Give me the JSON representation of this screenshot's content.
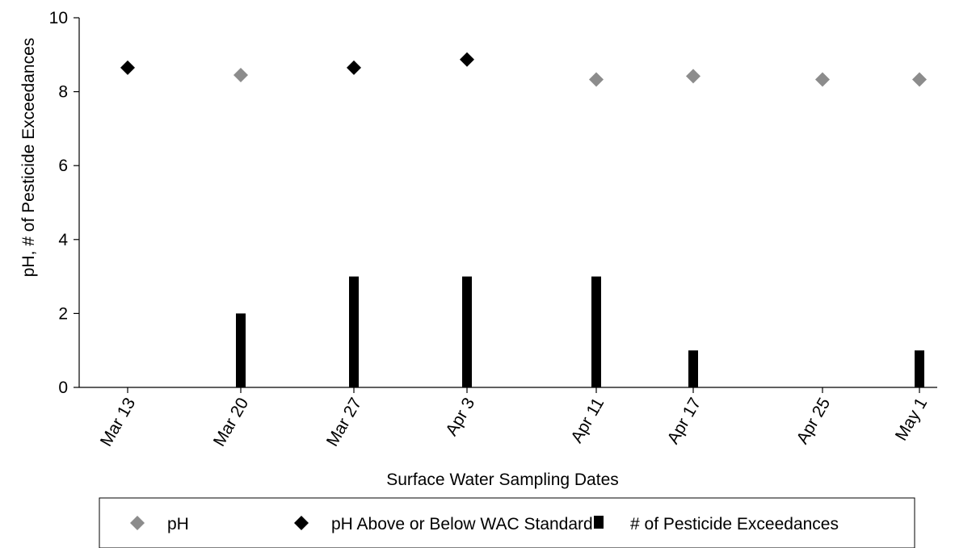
{
  "chart_data": {
    "type": "scatter",
    "xlabel": "Surface Water Sampling Dates",
    "ylabel": "pH, # of Pesticide Exceedances",
    "ylim": [
      0,
      10
    ],
    "yticks": [
      "0",
      "2",
      "4",
      "6",
      "8",
      "10"
    ],
    "x": [
      "2013-03-13",
      "2013-03-20",
      "2013-03-27",
      "2013-04-03",
      "2013-04-11",
      "2013-04-17",
      "2013-04-25",
      "2013-05-01"
    ],
    "x_tick_labels": [
      "Mar 13",
      "Mar 20",
      "Mar 27",
      "Apr 3",
      "Apr 11",
      "Apr 17",
      "Apr 25",
      "May 1"
    ],
    "legend_position": "bottom",
    "grid": false,
    "series": [
      {
        "name": "pH",
        "marker": "diamond",
        "color": "#8c8c8c",
        "values": [
          null,
          8.45,
          null,
          null,
          8.33,
          8.42,
          8.33,
          8.33
        ]
      },
      {
        "name": "pH Above or Below WAC Standard",
        "marker": "diamond",
        "color": "#000000",
        "values": [
          8.65,
          null,
          8.65,
          8.87,
          null,
          null,
          null,
          null
        ]
      },
      {
        "name": "# of Pesticide Exceedances",
        "marker": "bar",
        "color": "#000000",
        "values": [
          0,
          2,
          3,
          3,
          3,
          1,
          0,
          1
        ]
      }
    ]
  }
}
